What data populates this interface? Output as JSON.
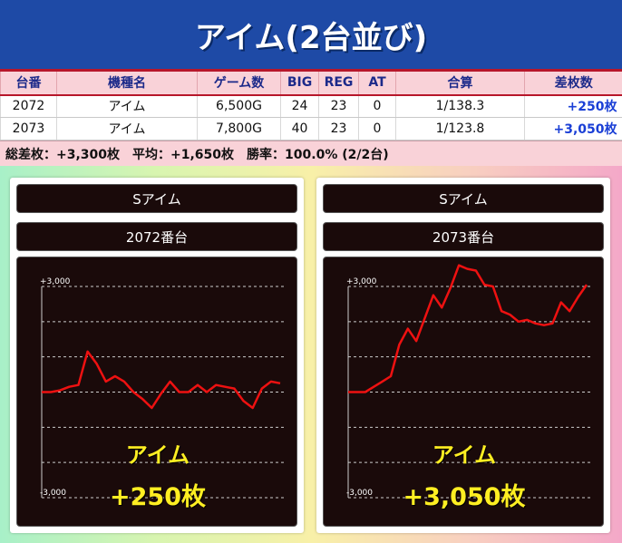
{
  "header": {
    "title": "アイム(2台並び)"
  },
  "table": {
    "columns": [
      "台番",
      "機種名",
      "ゲーム数",
      "BIG",
      "REG",
      "AT",
      "合算",
      "差枚数"
    ],
    "rows": [
      [
        "2072",
        "アイム",
        "6,500G",
        "24",
        "23",
        "0",
        "1/138.3",
        "+250枚"
      ],
      [
        "2073",
        "アイム",
        "7,800G",
        "40",
        "23",
        "0",
        "1/123.8",
        "+3,050枚"
      ]
    ]
  },
  "summary": {
    "total": "総差枚：+3,300枚",
    "average": "平均：+1,650枚",
    "win_rate": "勝率：100.0% (2/2台)"
  },
  "colors": {
    "banner": "#1e4aa6",
    "header_bg": "#f9d2d8",
    "header_text": "#1c2a8a",
    "line": "#ee1111",
    "overlay_text": "#ffee22",
    "diff_text": "#1a3fd6"
  },
  "panels": [
    {
      "machine": "Sアイム",
      "unit": "2072番台",
      "overlay_name": "アイム",
      "overlay_diff": "+250枚"
    },
    {
      "machine": "Sアイム",
      "unit": "2073番台",
      "overlay_name": "アイム",
      "overlay_diff": "+3,050枚"
    }
  ],
  "chart_data": [
    {
      "type": "line",
      "title": "2072番台",
      "ylim": [
        -3000,
        3000
      ],
      "yticks": [
        3000,
        2000,
        1000,
        0,
        -1000,
        -2000,
        -3000
      ],
      "ytick_labels": [
        "+3,000",
        "",
        "",
        "",
        "",
        "",
        "-3,000"
      ],
      "grid": true,
      "series": [
        {
          "values": [
            0,
            0,
            50,
            150,
            200,
            1150,
            800,
            300,
            450,
            300,
            0,
            -200,
            -450,
            -50,
            300,
            0,
            0,
            200,
            0,
            200,
            150,
            100,
            -250,
            -450,
            100,
            300,
            250
          ]
        }
      ]
    },
    {
      "type": "line",
      "title": "2073番台",
      "ylim": [
        -3000,
        3000
      ],
      "yticks": [
        3000,
        2000,
        1000,
        0,
        -1000,
        -2000,
        -3000
      ],
      "ytick_labels": [
        "+3,000",
        "",
        "",
        "",
        "",
        "",
        "-3,000"
      ],
      "grid": true,
      "series": [
        {
          "values": [
            0,
            0,
            0,
            150,
            300,
            450,
            1350,
            1800,
            1450,
            2100,
            2750,
            2400,
            2950,
            3600,
            3500,
            3450,
            3050,
            3000,
            2300,
            2200,
            2000,
            2050,
            1950,
            1900,
            1950,
            2550,
            2300,
            2700,
            3050
          ]
        }
      ]
    }
  ]
}
